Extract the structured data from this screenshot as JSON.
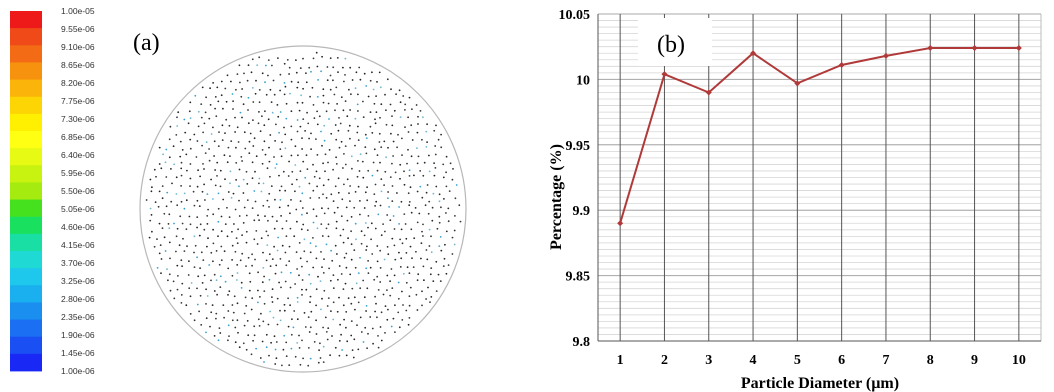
{
  "panel_a": {
    "label": "(a)",
    "colorbar": {
      "tick_labels": [
        "1.00e-05",
        "9.55e-06",
        "9.10e-06",
        "8.65e-06",
        "8.20e-06",
        "7.75e-06",
        "7.30e-06",
        "6.85e-06",
        "6.40e-06",
        "5.95e-06",
        "5.50e-06",
        "5.05e-06",
        "4.60e-06",
        "4.15e-06",
        "3.70e-06",
        "3.25e-06",
        "2.80e-06",
        "2.35e-06",
        "1.90e-06",
        "1.45e-06",
        "1.00e-06"
      ],
      "colors": [
        "#ee1a1a",
        "#f04a18",
        "#f36b14",
        "#f7920e",
        "#fbb40a",
        "#fdd404",
        "#ffef00",
        "#ffff14",
        "#e6fa14",
        "#c8f20f",
        "#a5eb0f",
        "#46e11e",
        "#19e15f",
        "#1adfa5",
        "#1ed9d4",
        "#1ec8ec",
        "#1aafef",
        "#1a8ff0",
        "#1a6ff2",
        "#1a4ff3",
        "#1a28f5"
      ]
    },
    "particle_colors": [
      "#222222",
      "#2a2a2a",
      "#333333",
      "#3a3a3a",
      "#3aa0d0",
      "#70b8d0"
    ]
  },
  "panel_b": {
    "label": "(b)"
  },
  "chart_data": {
    "type": "line",
    "x": [
      1,
      2,
      3,
      4,
      5,
      6,
      7,
      8,
      9,
      10
    ],
    "series": [
      {
        "values": [
          9.89,
          10.004,
          9.99,
          10.02,
          9.997,
          10.011,
          10.018,
          10.024,
          10.024,
          10.024
        ],
        "color": "#b03a3a"
      }
    ],
    "xlabel": "Particle Diameter (µm)",
    "ylabel": "Percentage (%)",
    "x_ticks": [
      "1",
      "2",
      "3",
      "4",
      "5",
      "6",
      "7",
      "8",
      "9",
      "10"
    ],
    "y_ticks": [
      "9.8",
      "9.85",
      "9.9",
      "9.95",
      "10",
      "10.05"
    ],
    "xlim": [
      0.5,
      10.5
    ],
    "ylim": [
      9.8,
      10.05
    ],
    "grid": true
  }
}
